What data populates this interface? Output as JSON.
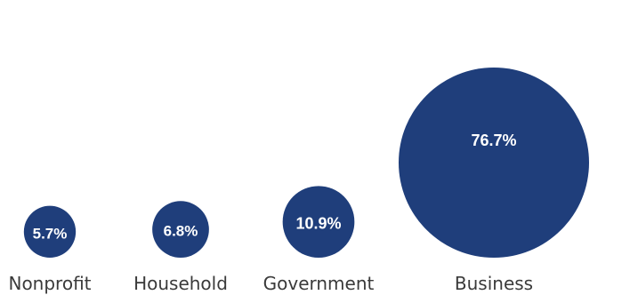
{
  "chart_data": {
    "type": "bubble",
    "color": "#1f3e7b",
    "categories": [
      "Nonprofit",
      "Household",
      "Government",
      "Business"
    ],
    "values": [
      5.7,
      6.8,
      10.9,
      76.7
    ],
    "value_labels": [
      "5.7%",
      "6.8%",
      "10.9%",
      "76.7%"
    ],
    "unit": "%"
  }
}
